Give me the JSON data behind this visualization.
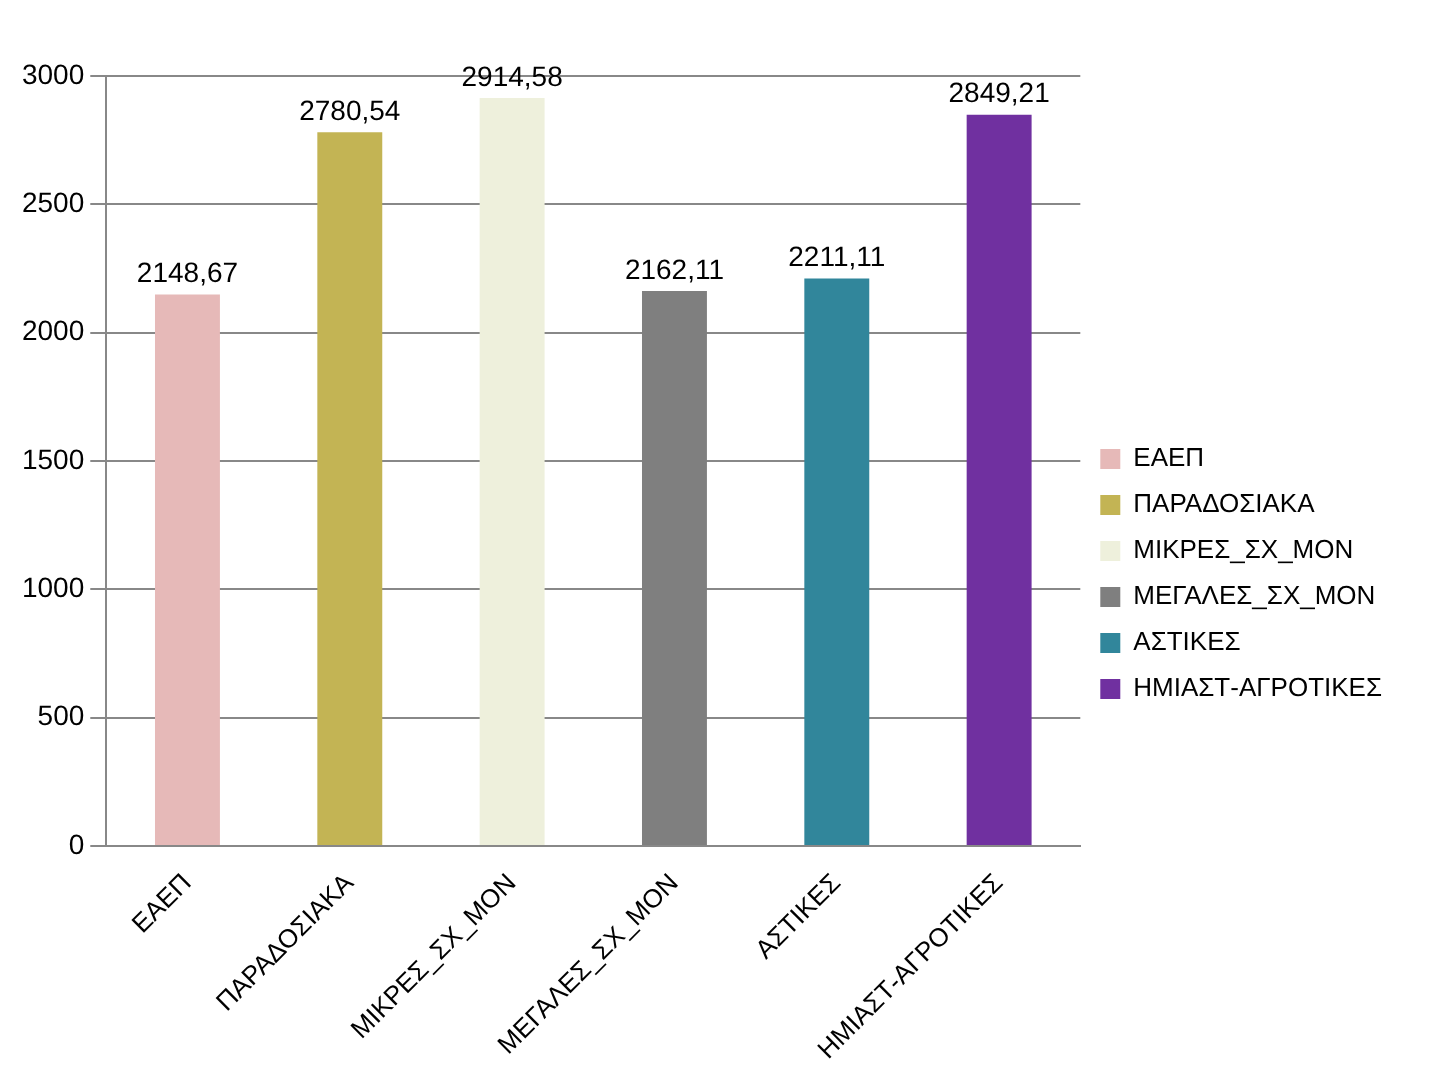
{
  "chart_data": {
    "type": "bar",
    "categories": [
      "ΕΑΕΠ",
      "ΠΑΡΑΔΟΣΙΑΚΑ",
      "ΜΙΚΡΕΣ_ΣΧ_ΜΟΝ",
      "ΜΕΓΑΛΕΣ_ΣΧ_ΜΟΝ",
      "ΑΣΤΙΚΕΣ",
      "ΗΜΙΑΣΤ-ΑΓΡΟΤΙΚΕΣ"
    ],
    "series": [
      {
        "name": "ΕΑΕΠ",
        "color": "#e6b9b8",
        "values": [
          2148.67,
          null,
          null,
          null,
          null,
          null
        ],
        "value_labels": [
          "2148,67",
          null,
          null,
          null,
          null,
          null
        ]
      },
      {
        "name": "ΠΑΡΑΔΟΣΙΑΚΑ",
        "color": "#c3b454",
        "values": [
          null,
          2780.54,
          null,
          null,
          null,
          null
        ],
        "value_labels": [
          null,
          "2780,54",
          null,
          null,
          null,
          null
        ]
      },
      {
        "name": "ΜΙΚΡΕΣ_ΣΧ_ΜΟΝ",
        "color": "#eef0dc",
        "values": [
          null,
          null,
          2914.58,
          null,
          null,
          null
        ],
        "value_labels": [
          null,
          null,
          "2914,58",
          null,
          null,
          null
        ]
      },
      {
        "name": "ΜΕΓΑΛΕΣ_ΣΧ_ΜΟΝ",
        "color": "#7f7f7f",
        "values": [
          null,
          null,
          null,
          2162.11,
          null,
          null
        ],
        "value_labels": [
          null,
          null,
          null,
          "2162,11",
          null,
          null
        ]
      },
      {
        "name": "ΑΣΤΙΚΕΣ",
        "color": "#31869b",
        "values": [
          null,
          null,
          null,
          null,
          2211.11,
          null
        ],
        "value_labels": [
          null,
          null,
          null,
          null,
          "2211,11",
          null
        ]
      },
      {
        "name": "ΗΜΙΑΣΤ-ΑΓΡΟΤΙΚΕΣ",
        "color": "#7030a0",
        "values": [
          null,
          null,
          null,
          null,
          null,
          2849.21
        ],
        "value_labels": [
          null,
          null,
          null,
          null,
          null,
          "2849,21"
        ]
      }
    ],
    "ylim": [
      0,
      3000
    ],
    "yticks": [
      0,
      500,
      1000,
      1500,
      2000,
      2500,
      3000
    ],
    "grid": "y",
    "legend": "right"
  }
}
